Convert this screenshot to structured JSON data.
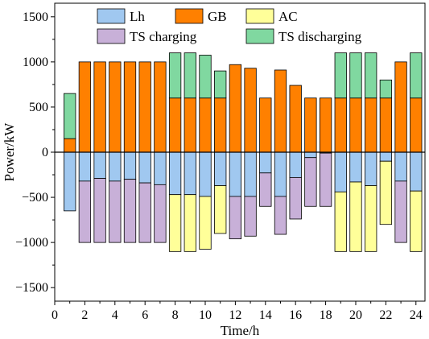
{
  "chart_data": {
    "type": "bar",
    "stacked": true,
    "xlabel": "Time/h",
    "ylabel": "Power/kW",
    "xlim": [
      0,
      24.6
    ],
    "ylim": [
      -1650,
      1650
    ],
    "xticks": [
      0,
      2,
      4,
      6,
      8,
      10,
      12,
      14,
      16,
      18,
      20,
      22,
      24
    ],
    "yticks": [
      -1500,
      -1000,
      -500,
      0,
      500,
      1000,
      1500
    ],
    "x": [
      1,
      2,
      3,
      4,
      5,
      6,
      7,
      8,
      9,
      10,
      11,
      12,
      13,
      14,
      15,
      16,
      17,
      18,
      19,
      20,
      21,
      22,
      23,
      24
    ],
    "positive_series": [
      {
        "name": "GB",
        "color": "#ff8000",
        "values": [
          150,
          1000,
          1000,
          1000,
          1000,
          1000,
          1000,
          600,
          600,
          600,
          600,
          970,
          930,
          600,
          910,
          740,
          600,
          600,
          600,
          600,
          600,
          600,
          1000,
          600
        ]
      },
      {
        "name": "TS discharging",
        "color": "#80d8a0",
        "values": [
          500,
          0,
          0,
          0,
          0,
          0,
          0,
          500,
          500,
          475,
          300,
          0,
          0,
          0,
          0,
          0,
          0,
          0,
          500,
          500,
          500,
          200,
          0,
          500
        ]
      }
    ],
    "negative_series": [
      {
        "name": "Lh",
        "color": "#a0c8f0",
        "values": [
          -650,
          -320,
          -290,
          -320,
          -300,
          -340,
          -360,
          -470,
          -470,
          -490,
          -370,
          -490,
          -490,
          -230,
          -490,
          -280,
          -60,
          -10,
          -440,
          -330,
          -370,
          -100,
          -320,
          -430
        ]
      },
      {
        "name": "TS charging",
        "color": "#c8b0d8",
        "values": [
          0,
          -680,
          -710,
          -680,
          -700,
          -660,
          -640,
          0,
          0,
          0,
          0,
          -470,
          -440,
          -370,
          -420,
          -460,
          -540,
          -590,
          0,
          0,
          0,
          0,
          -680,
          0
        ]
      },
      {
        "name": "AC",
        "color": "#ffff99",
        "values": [
          0,
          0,
          0,
          0,
          0,
          0,
          0,
          -630,
          -630,
          -585,
          -530,
          0,
          0,
          0,
          0,
          0,
          0,
          0,
          -660,
          -770,
          -730,
          -700,
          0,
          -670
        ]
      }
    ],
    "legend": {
      "placement": "top",
      "entries": [
        {
          "name": "Lh",
          "color": "#a0c8f0"
        },
        {
          "name": "GB",
          "color": "#ff8000"
        },
        {
          "name": "AC",
          "color": "#ffff99"
        },
        {
          "name": "TS charging",
          "color": "#c8b0d8"
        },
        {
          "name": "TS discharging",
          "color": "#80d8a0"
        }
      ]
    }
  }
}
